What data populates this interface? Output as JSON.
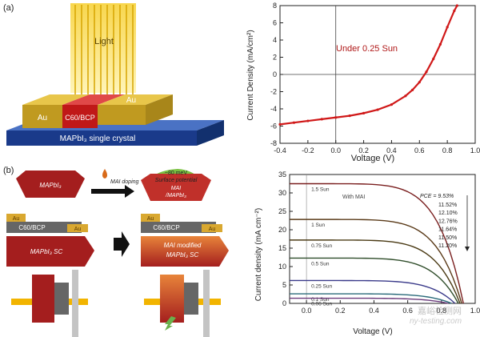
{
  "panel_labels": {
    "a": "(a)",
    "b": "(b)"
  },
  "schematic_a": {
    "light": "Light",
    "left_electrode": "Au",
    "right_electrode": "Au",
    "middle_layer": "C60/BCP",
    "crystal_label": "MAPbI₃ single crystal"
  },
  "schematic_b": {
    "mapbi3": "MAPbI₃",
    "mai_doping": "MAI doping",
    "surface_potential_1": "~80 meV",
    "surface_potential_2": "Surface potential",
    "mai_layer_1": "MAI",
    "mai_layer_2": "/MAPbI₃",
    "au_left": "Au",
    "au_right": "Au",
    "c60_bcp": "C60/BCP",
    "au_left_2": "Au",
    "au_right_2": "Au",
    "c60_bcp_2": "C60/BCP",
    "sc_label": "MAPbI₃ SC",
    "mod_label_1": "MAI modified",
    "mod_label_2": "MAPbI₃ SC"
  },
  "watermark": {
    "line1": "嘉峪检测网",
    "line2": "ny-testing.com"
  },
  "colors": {
    "dark_red": "#a41e1e",
    "gold": "#d9a830",
    "curve_red": "#d01818",
    "green_arrow": "#6ab04c",
    "gray_block": "#6b6b6b"
  },
  "chart_data": [
    {
      "type": "line",
      "title": "",
      "annotation": "Under 0.25 Sun",
      "xlabel": "Voltage (V)",
      "ylabel": "Current Density (mA/cm²)",
      "xlim": [
        -0.4,
        1.0
      ],
      "ylim": [
        -8,
        8
      ],
      "xticks": [
        "-0.4",
        "-0.2",
        "0.0",
        "0.2",
        "0.4",
        "0.6",
        "0.8",
        "1.0"
      ],
      "yticks": [
        "-8",
        "-6",
        "-4",
        "-2",
        "0",
        "2",
        "4",
        "6",
        "8"
      ],
      "series": [
        {
          "name": "Under 0.25 Sun",
          "x": [
            -0.4,
            -0.3,
            -0.2,
            -0.1,
            0.0,
            0.1,
            0.2,
            0.3,
            0.4,
            0.5,
            0.55,
            0.6,
            0.65,
            0.7,
            0.75,
            0.8,
            0.85,
            0.87
          ],
          "y": [
            -5.8,
            -5.6,
            -5.4,
            -5.2,
            -5.0,
            -4.8,
            -4.5,
            -4.1,
            -3.5,
            -2.5,
            -1.8,
            -0.9,
            0.3,
            1.8,
            3.5,
            5.5,
            7.4,
            8.0
          ]
        }
      ]
    },
    {
      "type": "line",
      "title": "",
      "annotation": "With MAI",
      "pce_label": "PCE = 9.53%",
      "pce_values": [
        "11.52%",
        "12.10%",
        "12.76%",
        "11.64%",
        "11.50%",
        "11.20%"
      ],
      "xlabel": "Voltage (V)",
      "ylabel": "Current density (mA cm⁻²)",
      "xlim": [
        -0.1,
        1.0
      ],
      "ylim": [
        0,
        35
      ],
      "xticks": [
        "0.0",
        "0.2",
        "0.4",
        "0.6",
        "0.8",
        "1.0"
      ],
      "yticks": [
        "0",
        "5",
        "10",
        "15",
        "20",
        "25",
        "30",
        "35"
      ],
      "series": [
        {
          "name": "1.5 Sun",
          "jsc": 32.5,
          "voc": 0.93,
          "color": "#7a1f1f"
        },
        {
          "name": "1 Sun",
          "jsc": 22.8,
          "voc": 0.92,
          "color": "#5a3a18"
        },
        {
          "name": "0.75 Sun",
          "jsc": 17.2,
          "voc": 0.91,
          "color": "#4a3a14"
        },
        {
          "name": "0.5 Sun",
          "jsc": 12.3,
          "voc": 0.9,
          "color": "#2f4d2a"
        },
        {
          "name": "0.25 Sun",
          "jsc": 6.2,
          "voc": 0.88,
          "color": "#3a3a8a"
        },
        {
          "name": "0.1 Sun",
          "jsc": 2.6,
          "voc": 0.86,
          "color": "#2a6a7a"
        },
        {
          "name": "0.06 Sun",
          "jsc": 1.4,
          "voc": 0.84,
          "color": "#6a3a7a"
        }
      ]
    }
  ]
}
